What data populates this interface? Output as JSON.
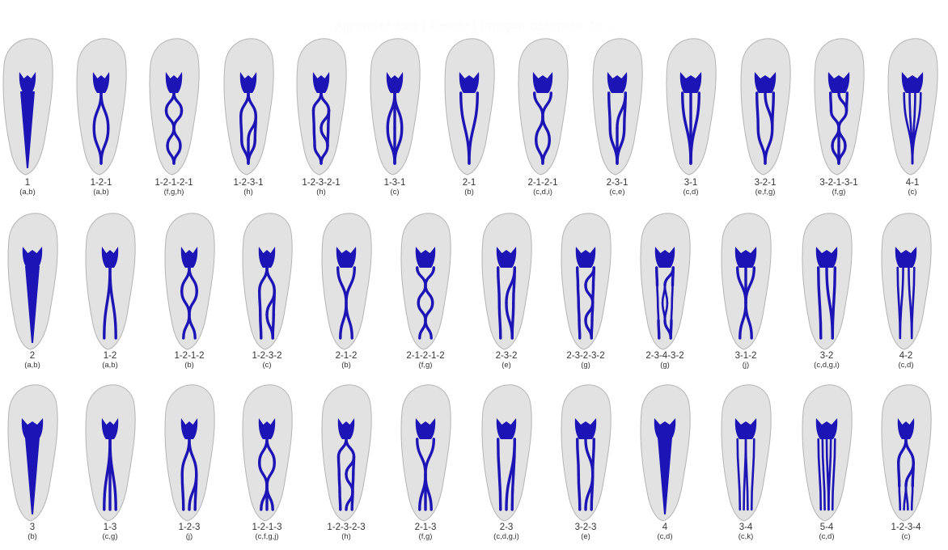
{
  "watermark": "Agrandar foto | Cerrar | Imagen obtenida de ...",
  "colors": {
    "canal": "#1c14b4",
    "tooth": "#e2e2e2",
    "tooth_outline": "#b4b4b4"
  },
  "rows": [
    {
      "items": [
        {
          "code": "1",
          "ref": "(a,b)",
          "pattern": "1"
        },
        {
          "code": "1-2-1",
          "ref": "(a,b)",
          "pattern": "1-2-1"
        },
        {
          "code": "1-2-1-2-1",
          "ref": "(f,g,h)",
          "pattern": "1-2-1-2-1"
        },
        {
          "code": "1-2-3-1",
          "ref": "(h)",
          "pattern": "1-2-3-1"
        },
        {
          "code": "1-2-3-2-1",
          "ref": "(h)",
          "pattern": "1-2-3-2-1"
        },
        {
          "code": "1-3-1",
          "ref": "(c)",
          "pattern": "1-3-1"
        },
        {
          "code": "2-1",
          "ref": "(b)",
          "pattern": "2-1"
        },
        {
          "code": "2-1-2-1",
          "ref": "(c,d,i)",
          "pattern": "2-1-2-1"
        },
        {
          "code": "2-3-1",
          "ref": "(c,e)",
          "pattern": "2-3-1"
        },
        {
          "code": "3-1",
          "ref": "(c,d)",
          "pattern": "3-1"
        },
        {
          "code": "3-2-1",
          "ref": "(e,f,g)",
          "pattern": "3-2-1"
        },
        {
          "code": "3-2-1-3-1",
          "ref": "(f,g)",
          "pattern": "3-2-1-3-1"
        },
        {
          "code": "4-1",
          "ref": "(c)",
          "pattern": "4-1"
        }
      ]
    },
    {
      "items": [
        {
          "code": "2",
          "ref": "(a,b)",
          "pattern": "2"
        },
        {
          "code": "1-2",
          "ref": "(a,b)",
          "pattern": "1-2"
        },
        {
          "code": "1-2-1-2",
          "ref": "(b)",
          "pattern": "1-2-1-2"
        },
        {
          "code": "1-2-3-2",
          "ref": "(c)",
          "pattern": "1-2-3-2"
        },
        {
          "code": "2-1-2",
          "ref": "(b)",
          "pattern": "2-1-2"
        },
        {
          "code": "2-1-2-1-2",
          "ref": "(f,g)",
          "pattern": "2-1-2-1-2"
        },
        {
          "code": "2-3-2",
          "ref": "(e)",
          "pattern": "2-3-2"
        },
        {
          "code": "2-3-2-3-2",
          "ref": "(g)",
          "pattern": "2-3-2-3-2"
        },
        {
          "code": "2-3-4-3-2",
          "ref": "(g)",
          "pattern": "2-3-4-3-2"
        },
        {
          "code": "3-1-2",
          "ref": "(j)",
          "pattern": "3-1-2"
        },
        {
          "code": "3-2",
          "ref": "(c,d,g,i)",
          "pattern": "3-2"
        },
        {
          "code": "4-2",
          "ref": "(c,d)",
          "pattern": "4-2"
        }
      ]
    },
    {
      "items": [
        {
          "code": "3",
          "ref": "(b)",
          "pattern": "3"
        },
        {
          "code": "1-3",
          "ref": "(c,g)",
          "pattern": "1-3"
        },
        {
          "code": "1-2-3",
          "ref": "(j)",
          "pattern": "1-2-3"
        },
        {
          "code": "1-2-1-3",
          "ref": "(c,f,g,j)",
          "pattern": "1-2-1-3"
        },
        {
          "code": "1-2-3-2-3",
          "ref": "(h)",
          "pattern": "1-2-3-2-3"
        },
        {
          "code": "2-1-3",
          "ref": "(f,g)",
          "pattern": "2-1-3"
        },
        {
          "code": "2-3",
          "ref": "(c,d,g,i)",
          "pattern": "2-3"
        },
        {
          "code": "3-2-3",
          "ref": "(e)",
          "pattern": "3-2-3"
        },
        {
          "code": "4",
          "ref": "(c,d)",
          "pattern": "4"
        },
        {
          "code": "3-4",
          "ref": "(c,k)",
          "pattern": "3-4"
        },
        {
          "code": "5-4",
          "ref": "(c,d)",
          "pattern": "5-4"
        },
        {
          "code": "1-2-3-4",
          "ref": "(c)",
          "pattern": "1-2-3-4"
        }
      ]
    }
  ]
}
